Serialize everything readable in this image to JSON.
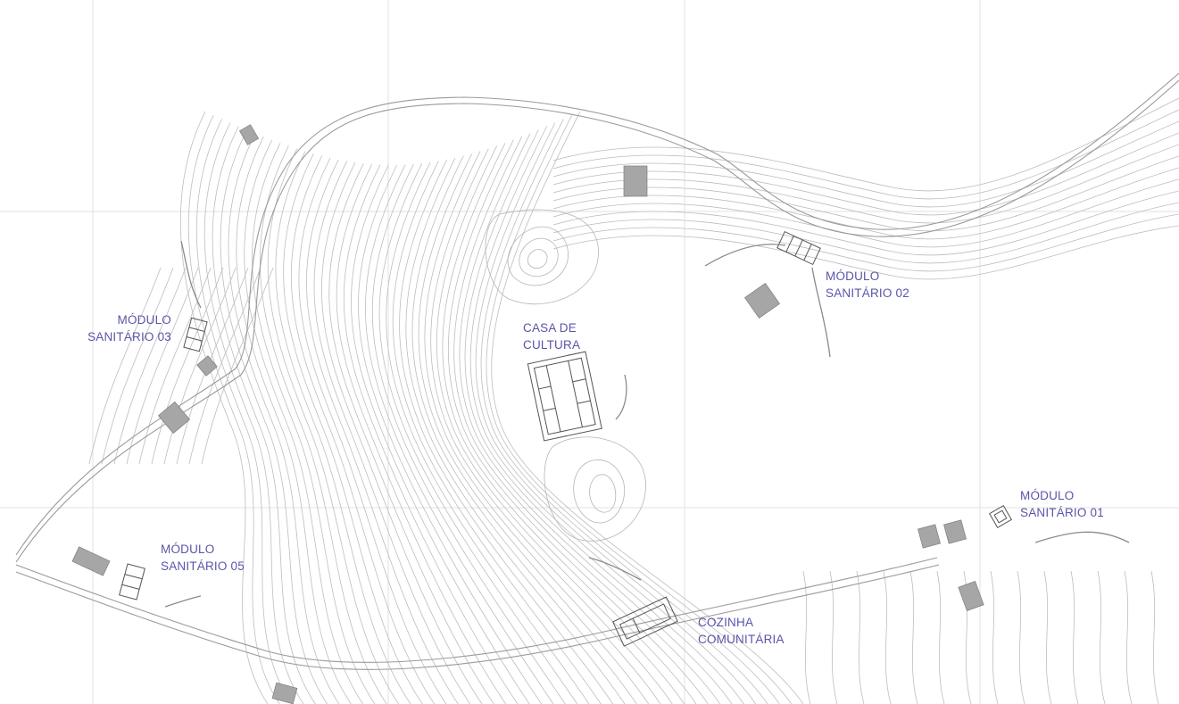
{
  "map": {
    "colors": {
      "background": "#ffffff",
      "contour": "#b9b9b9",
      "road": "#9a9a9a",
      "grid": "#e2e2e2",
      "building": "#a6a6a6",
      "label": "#5a55a8"
    },
    "labels": {
      "modulo_sanitario_01": {
        "line1": "MÓDULO",
        "line2": "SANITÁRIO 01"
      },
      "modulo_sanitario_02": {
        "line1": "MÓDULO",
        "line2": "SANITÁRIO 02"
      },
      "modulo_sanitario_03": {
        "line1": "MÓDULO",
        "line2": "SANITÁRIO 03"
      },
      "modulo_sanitario_05": {
        "line1": "MÓDULO",
        "line2": "SANITÁRIO 05"
      },
      "casa_de_cultura": {
        "line1": "CASA DE",
        "line2": "CULTURA"
      },
      "cozinha_comunitaria": {
        "line1": "COZINHA",
        "line2": "COMUNITÁRIA"
      }
    }
  }
}
